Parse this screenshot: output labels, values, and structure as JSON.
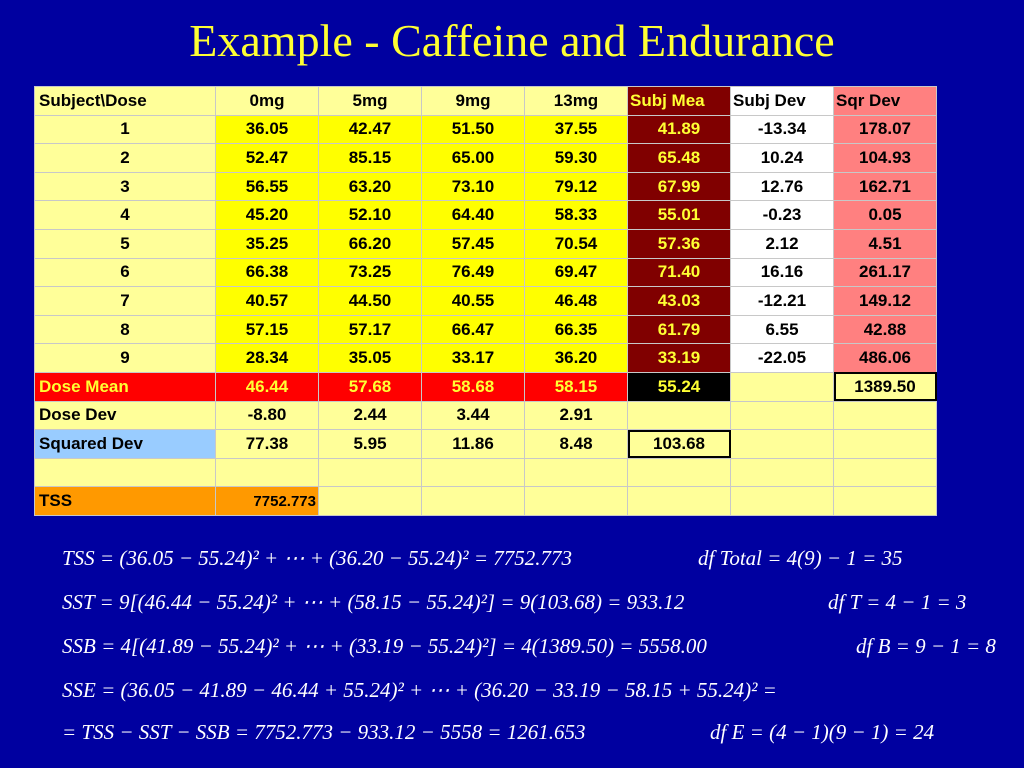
{
  "title": "Example - Caffeine and Endurance",
  "table": {
    "headers": [
      "Subject\\Dose",
      "0mg",
      "5mg",
      "9mg",
      "13mg",
      "Subj Mea",
      "Subj Dev",
      "Sqr Dev"
    ],
    "rows": [
      [
        "1",
        "36.05",
        "42.47",
        "51.50",
        "37.55",
        "41.89",
        "-13.34",
        "178.07"
      ],
      [
        "2",
        "52.47",
        "85.15",
        "65.00",
        "59.30",
        "65.48",
        "10.24",
        "104.93"
      ],
      [
        "3",
        "56.55",
        "63.20",
        "73.10",
        "79.12",
        "67.99",
        "12.76",
        "162.71"
      ],
      [
        "4",
        "45.20",
        "52.10",
        "64.40",
        "58.33",
        "55.01",
        "-0.23",
        "0.05"
      ],
      [
        "5",
        "35.25",
        "66.20",
        "57.45",
        "70.54",
        "57.36",
        "2.12",
        "4.51"
      ],
      [
        "6",
        "66.38",
        "73.25",
        "76.49",
        "69.47",
        "71.40",
        "16.16",
        "261.17"
      ],
      [
        "7",
        "40.57",
        "44.50",
        "40.55",
        "46.48",
        "43.03",
        "-12.21",
        "149.12"
      ],
      [
        "8",
        "57.15",
        "57.17",
        "66.47",
        "66.35",
        "61.79",
        "6.55",
        "42.88"
      ],
      [
        "9",
        "28.34",
        "35.05",
        "33.17",
        "36.20",
        "33.19",
        "-22.05",
        "486.06"
      ]
    ],
    "dose_mean": {
      "label": "Dose Mean",
      "values": [
        "46.44",
        "57.68",
        "58.68",
        "58.15"
      ],
      "grand_mean": "55.24",
      "sum_sqr": "1389.50"
    },
    "dose_dev": {
      "label": "Dose Dev",
      "values": [
        "-8.80",
        "2.44",
        "3.44",
        "2.91"
      ]
    },
    "squared_dev": {
      "label": "Squared Dev",
      "values": [
        "77.38",
        "5.95",
        "11.86",
        "8.48"
      ],
      "sum": "103.68"
    },
    "tss": {
      "label": "TSS",
      "value": "7752.773"
    }
  },
  "equations": {
    "tss": "TSS = (36.05 − 55.24)² + ⋯ + (36.20 − 55.24)² = 7752.773",
    "df_total": "df Total = 4(9) − 1 = 35",
    "sst": "SST = 9[(46.44 − 55.24)² + ⋯ + (58.15 − 55.24)²] = 9(103.68) = 933.12",
    "df_t": "df T = 4 − 1 = 3",
    "ssb": "SSB = 4[(41.89 − 55.24)² + ⋯ + (33.19 − 55.24)²] = 4(1389.50) = 5558.00",
    "df_b": "df B = 9 − 1 = 8",
    "sse_1": "SSE = (36.05 − 41.89 − 46.44 + 55.24)² + ⋯ + (36.20 − 33.19 − 58.15 + 55.24)² =",
    "sse_2": "= TSS − SST − SSB = 7752.773 − 933.12 − 5558 = 1261.653",
    "df_e": "df E = (4 − 1)(9 − 1) = 24"
  }
}
